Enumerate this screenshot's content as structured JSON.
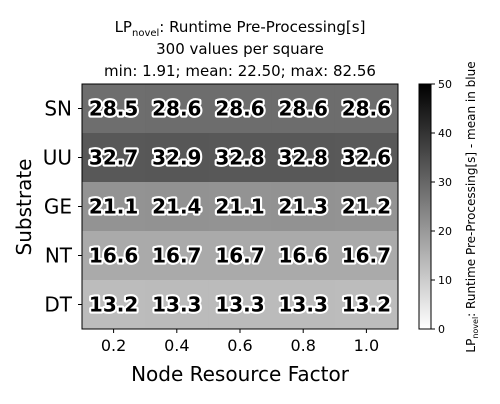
{
  "chart_data": {
    "type": "heatmap",
    "title": {
      "line1_prefix": "LP",
      "line1_sub": "novel",
      "line1_suffix": ": Runtime Pre-Processing[s]",
      "line2": "300 values per square",
      "line3": "min: 1.91; mean: 22.50; max: 82.56"
    },
    "xlabel": "Node Resource Factor",
    "ylabel": "Substrate",
    "x_categories": [
      "0.2",
      "0.4",
      "0.6",
      "0.8",
      "1.0"
    ],
    "y_categories": [
      "SN",
      "UU",
      "GE",
      "NT",
      "DT"
    ],
    "values": [
      [
        28.5,
        28.6,
        28.6,
        28.6,
        28.6
      ],
      [
        32.7,
        32.9,
        32.8,
        32.8,
        32.6
      ],
      [
        21.1,
        21.4,
        21.1,
        21.3,
        21.2
      ],
      [
        16.6,
        16.7,
        16.7,
        16.6,
        16.7
      ],
      [
        13.2,
        13.3,
        13.3,
        13.3,
        13.2
      ]
    ],
    "colorscale": "Greys",
    "colorbar": {
      "range": [
        0,
        50
      ],
      "ticks": [
        0,
        10,
        20,
        30,
        40,
        50
      ],
      "label_prefix": "LP",
      "label_sub": "novel",
      "label_suffix": ": Runtime Pre-Processing[s] - mean in blue"
    },
    "grid": false
  }
}
